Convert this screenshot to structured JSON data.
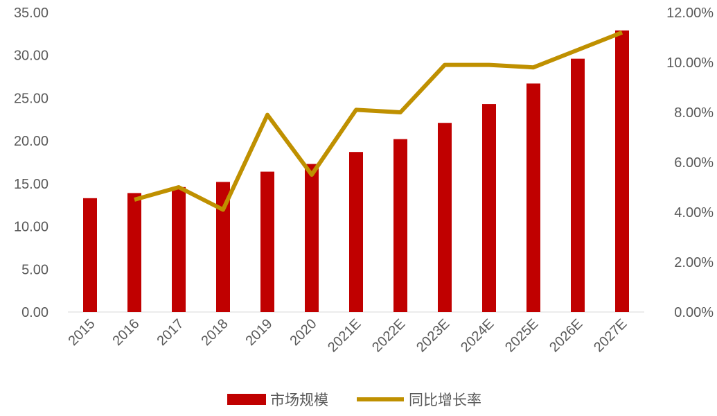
{
  "chart_data": {
    "type": "bar",
    "categories": [
      "2015",
      "2016",
      "2017",
      "2018",
      "2019",
      "2020",
      "2021E",
      "2022E",
      "2023E",
      "2024E",
      "2025E",
      "2026E",
      "2027E"
    ],
    "series": [
      {
        "name": "市场规模",
        "type": "bar",
        "axis": "left",
        "color": "#C00000",
        "values": [
          13.3,
          13.9,
          14.6,
          15.2,
          16.4,
          17.3,
          18.7,
          20.2,
          22.1,
          24.3,
          26.7,
          29.6,
          32.9
        ]
      },
      {
        "name": "同比增长率",
        "type": "line",
        "axis": "right",
        "color": "#BF9000",
        "values": [
          null,
          4.5,
          5.0,
          4.1,
          7.9,
          5.5,
          8.1,
          8.0,
          9.9,
          9.9,
          9.8,
          10.5,
          11.2
        ]
      }
    ],
    "left_axis": {
      "ylim": [
        0,
        35
      ],
      "ticks": [
        "0.00",
        "5.00",
        "10.00",
        "15.00",
        "20.00",
        "25.00",
        "30.00",
        "35.00"
      ]
    },
    "right_axis": {
      "ylim": [
        0,
        12
      ],
      "ticks": [
        "0.00%",
        "2.00%",
        "4.00%",
        "6.00%",
        "8.00%",
        "10.00%",
        "12.00%"
      ]
    },
    "legend_position": "bottom",
    "grid": false
  }
}
